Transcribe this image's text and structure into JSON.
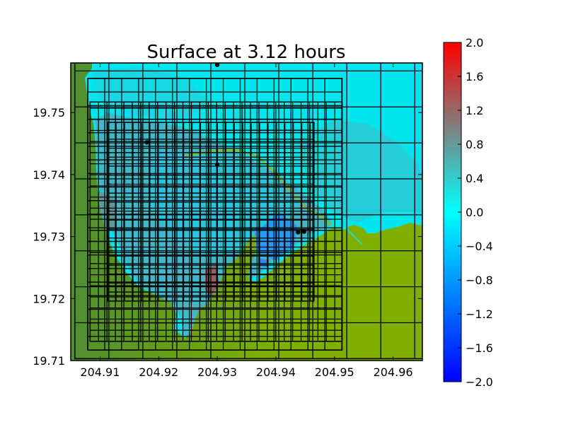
{
  "chart_data": {
    "type": "heatmap",
    "title": "Surface at 3.12 hours",
    "xlabel": "",
    "ylabel": "",
    "xlim": [
      204.905,
      204.965
    ],
    "ylim": [
      19.71,
      19.758
    ],
    "x_ticks": [
      204.91,
      204.92,
      204.93,
      204.94,
      204.95,
      204.96
    ],
    "x_tick_labels": [
      "204.91",
      "204.92",
      "204.93",
      "204.94",
      "204.95",
      "204.96"
    ],
    "y_ticks": [
      19.71,
      19.72,
      19.73,
      19.74,
      19.75
    ],
    "y_tick_labels": [
      "19.71",
      "19.72",
      "19.73",
      "19.74",
      "19.75"
    ],
    "colorbar": {
      "min": -2.0,
      "max": 2.0,
      "ticks": [
        2.0,
        1.6,
        1.2,
        0.8,
        0.4,
        0.0,
        -0.4,
        -0.8,
        -1.2,
        -1.6,
        -2.0
      ],
      "tick_labels": [
        "2.0",
        "1.6",
        "1.2",
        "0.8",
        "0.4",
        "0.0",
        "−0.4",
        "−0.8",
        "−1.2",
        "−1.6",
        "−2.0"
      ],
      "colors": [
        "#0000ff",
        "#00ffff",
        "#808080",
        "#ff0000"
      ]
    },
    "land_color": "#7fb000",
    "water_color": "#00e5ee",
    "gauges": [
      {
        "x": 204.93,
        "y": 19.7577
      },
      {
        "x": 204.918,
        "y": 19.7452
      },
      {
        "x": 204.93,
        "y": 19.7416
      },
      {
        "x": 204.9438,
        "y": 19.7307
      },
      {
        "x": 204.9448,
        "y": 19.7308
      }
    ],
    "patches": [
      {
        "x": [
          204.9057,
          204.965
        ],
        "y": [
          19.7103,
          19.758
        ],
        "dx": 0.0058,
        "dy": 0.0058
      },
      {
        "x": [
          204.9079,
          204.9513
        ],
        "y": [
          19.7117,
          19.7555
        ],
        "dx": 0.00289,
        "dy": 0.00219
      },
      {
        "x": [
          204.9083,
          204.9513
        ],
        "y": [
          19.7131,
          19.7517
        ],
        "dx": 0.00144,
        "dy": 0.00179
      },
      {
        "x": [
          204.9113,
          204.9465
        ],
        "y": [
          19.7196,
          19.7484
        ],
        "dx": 0.00144,
        "dy": 0.00145
      }
    ]
  }
}
